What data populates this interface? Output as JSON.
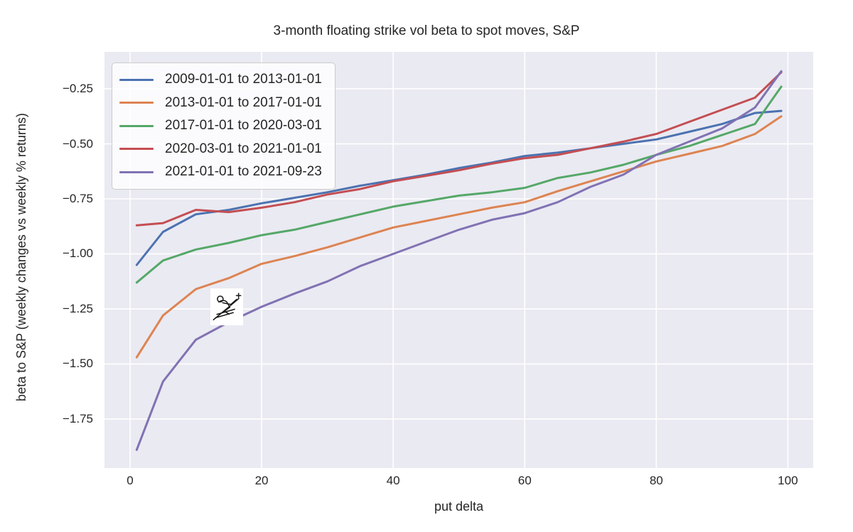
{
  "chart_data": {
    "type": "line",
    "title": "3-month floating strike vol beta to spot moves, S&P",
    "xlabel": "put delta",
    "ylabel": "beta to S&P (weekly changes vs weekly % returns)",
    "grid": true,
    "legend_position": "upper left",
    "plot_background": "#eaeaf2",
    "gridline_color": "#ffffff",
    "text_color": "#262626",
    "xlim": [
      -3.89,
      103.85
    ],
    "ylim": [
      -1.973,
      -0.082
    ],
    "xticks": {
      "values": [
        0,
        20,
        40,
        60,
        80,
        100
      ],
      "labels": [
        "0",
        "20",
        "40",
        "60",
        "80",
        "100"
      ]
    },
    "yticks": {
      "values": [
        -0.25,
        -0.5,
        -0.75,
        -1.0,
        -1.25,
        -1.5,
        -1.75
      ],
      "labels": [
        "−0.25",
        "−0.50",
        "−0.75",
        "−1.00",
        "−1.25",
        "−1.50",
        "−1.75"
      ]
    },
    "x": [
      1,
      5,
      10,
      15,
      20,
      25,
      30,
      35,
      40,
      45,
      50,
      55,
      60,
      65,
      70,
      75,
      80,
      85,
      90,
      95,
      99
    ],
    "series": [
      {
        "name": "2009-01-01 to 2013-01-01",
        "color": "#4c72b0",
        "values": [
          -1.05,
          -0.9,
          -0.82,
          -0.8,
          -0.77,
          -0.745,
          -0.72,
          -0.69,
          -0.665,
          -0.64,
          -0.61,
          -0.585,
          -0.555,
          -0.54,
          -0.52,
          -0.5,
          -0.48,
          -0.445,
          -0.41,
          -0.36,
          -0.35
        ]
      },
      {
        "name": "2013-01-01 to 2017-01-01",
        "color": "#dd8452",
        "values": [
          -1.47,
          -1.28,
          -1.16,
          -1.11,
          -1.045,
          -1.01,
          -0.97,
          -0.925,
          -0.88,
          -0.85,
          -0.82,
          -0.79,
          -0.765,
          -0.715,
          -0.67,
          -0.625,
          -0.58,
          -0.545,
          -0.51,
          -0.455,
          -0.375
        ]
      },
      {
        "name": "2017-01-01 to 2020-03-01",
        "color": "#55a868",
        "values": [
          -1.13,
          -1.03,
          -0.98,
          -0.95,
          -0.915,
          -0.89,
          -0.855,
          -0.82,
          -0.785,
          -0.76,
          -0.735,
          -0.72,
          -0.7,
          -0.655,
          -0.63,
          -0.595,
          -0.55,
          -0.51,
          -0.46,
          -0.41,
          -0.24
        ]
      },
      {
        "name": "2020-03-01 to 2021-01-01",
        "color": "#c44e52",
        "values": [
          -0.87,
          -0.86,
          -0.8,
          -0.81,
          -0.79,
          -0.765,
          -0.73,
          -0.705,
          -0.67,
          -0.645,
          -0.62,
          -0.59,
          -0.565,
          -0.55,
          -0.52,
          -0.49,
          -0.455,
          -0.4,
          -0.345,
          -0.29,
          -0.175
        ]
      },
      {
        "name": "2021-01-01 to 2021-09-23",
        "color": "#8172b3",
        "values": [
          -1.89,
          -1.58,
          -1.39,
          -1.31,
          -1.24,
          -1.18,
          -1.125,
          -1.055,
          -1.0,
          -0.945,
          -0.89,
          -0.845,
          -0.815,
          -0.765,
          -0.695,
          -0.64,
          -0.55,
          -0.49,
          -0.43,
          -0.335,
          -0.17
        ]
      }
    ],
    "annotation": {
      "icon": "skier-icon",
      "x": 14.7,
      "y": -1.24
    }
  }
}
